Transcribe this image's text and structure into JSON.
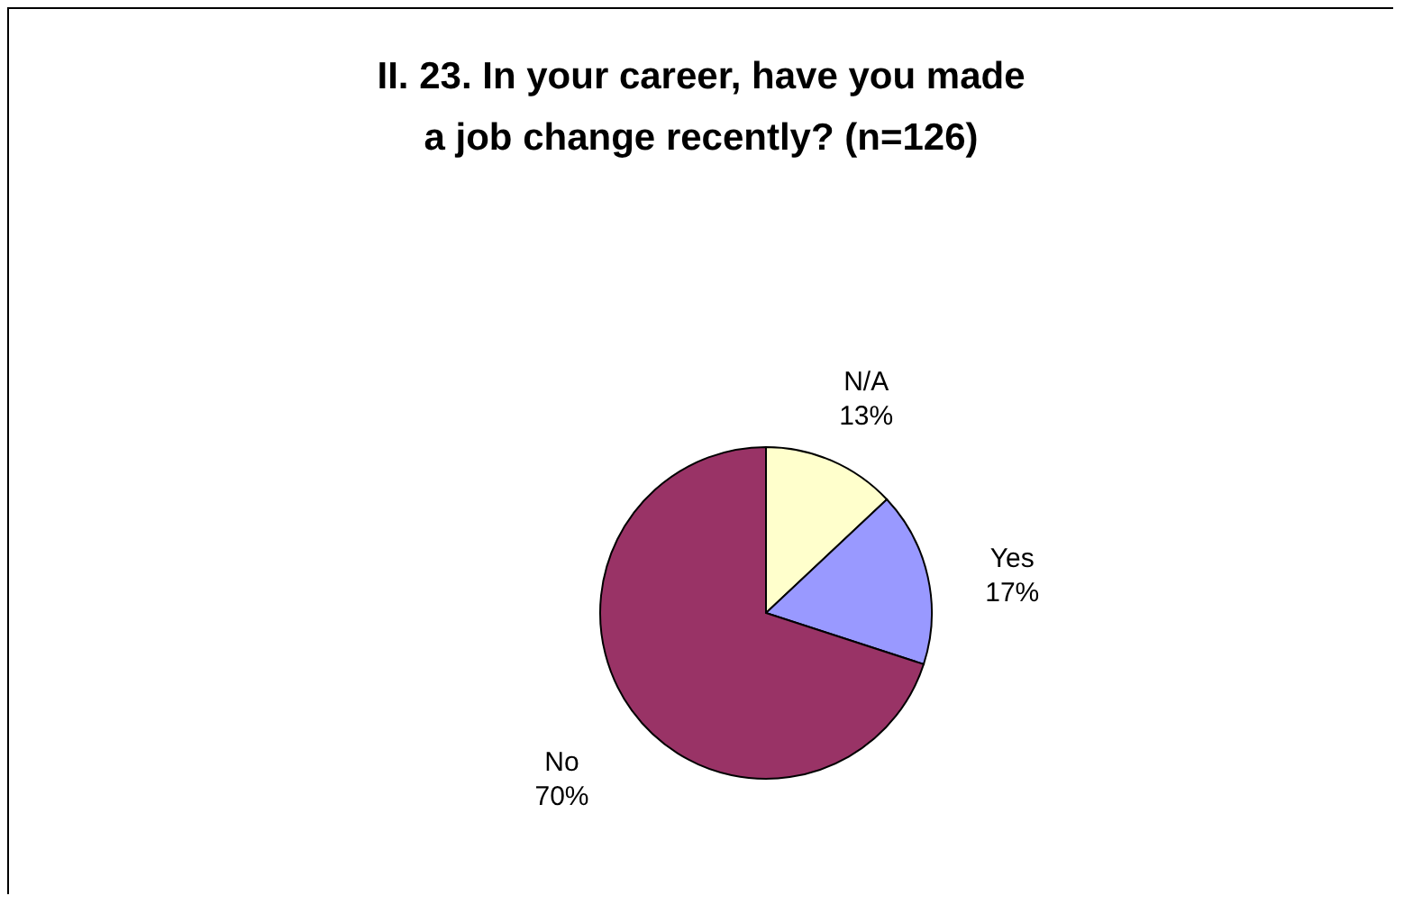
{
  "chart_data": {
    "type": "pie",
    "title": "II. 23. In your career, have you made a job change recently? (n=126)",
    "categories": [
      "N/A",
      "Yes",
      "No"
    ],
    "values": [
      13,
      17,
      70
    ],
    "colors": [
      "#ffffcc",
      "#9999ff",
      "#993366"
    ],
    "value_labels": [
      "13%",
      "17%",
      "70%"
    ]
  }
}
